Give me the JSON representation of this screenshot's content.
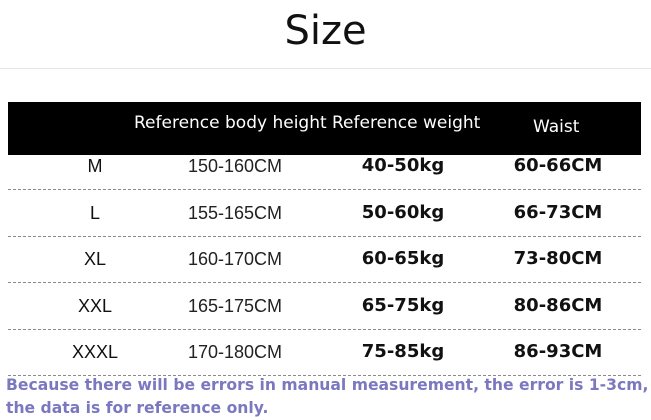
{
  "title": "Size",
  "table": {
    "headers": [
      "",
      "Reference body height",
      "Reference weight",
      "Waist"
    ],
    "rows": [
      [
        "M",
        "150-160CM",
        "40-50kg",
        "60-66CM"
      ],
      [
        "L",
        "155-165CM",
        "50-60kg",
        "66-73CM"
      ],
      [
        "XL",
        "160-170CM",
        "60-65kg",
        "73-80CM"
      ],
      [
        "XXL",
        "165-175CM",
        "65-75kg",
        "80-86CM"
      ],
      [
        "XXXL",
        "170-180CM",
        "75-85kg",
        "86-93CM"
      ]
    ]
  },
  "note": {
    "line1": "Because there will be errors in manual measurement, the error is 1-3cm,",
    "line2": "the data is for reference only.",
    "color": "#7b78c0"
  }
}
